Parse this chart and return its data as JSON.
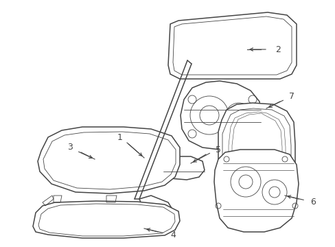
{
  "background_color": "#ffffff",
  "line_color": "#444444",
  "figsize": [
    4.89,
    3.6
  ],
  "dpi": 100,
  "lw_main": 1.1,
  "lw_thin": 0.6,
  "lw_thick": 1.4
}
